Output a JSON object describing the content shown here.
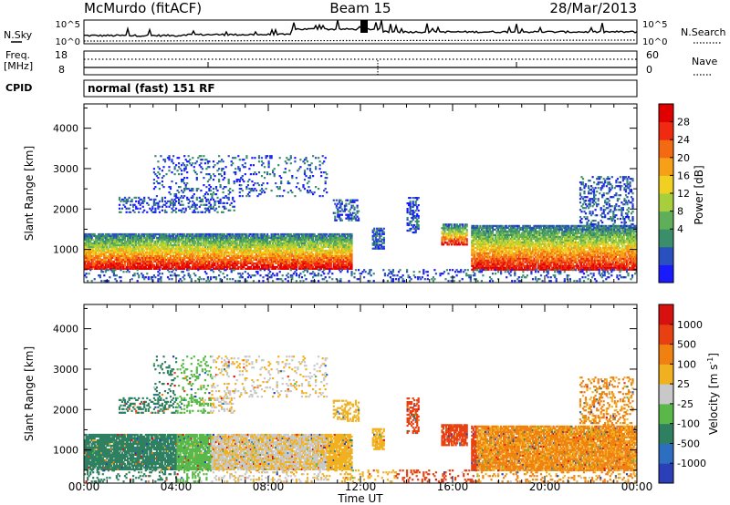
{
  "header": {
    "station": "McMurdo (fitACF)",
    "beam": "Beam 15",
    "date": "28/Mar/2013"
  },
  "summary_panels": {
    "nsky_label": "N.Sky",
    "nsearch_label": "N.Search",
    "nsky_ticks": [
      "10^5",
      "10^0"
    ],
    "nsearch_ticks": [
      "10^5",
      "10^0"
    ],
    "freq_label": "Freq.",
    "freq_unit": "[MHz]",
    "freq_ticks": [
      "18",
      "8"
    ],
    "nave_label": "Nave",
    "nave_ticks": [
      "60",
      "0"
    ],
    "cpid_label": "CPID",
    "cpid_text": "normal (fast) 151 RF"
  },
  "chart_data": [
    {
      "type": "heatmap",
      "name": "power",
      "xlabel": "",
      "ylabel": "Slant Range [km]",
      "xlim": [
        0,
        24
      ],
      "ylim": [
        180,
        4600
      ],
      "y_ticks": [
        "1000",
        "2000",
        "3000",
        "4000"
      ],
      "colorbar_label": "Power [dB]",
      "colorbar_ticks": [
        "28",
        "24",
        "20",
        "16",
        "12",
        "8",
        "4"
      ],
      "colors": [
        "#1a1aff",
        "#2a4fbf",
        "#3a8f6a",
        "#5fae5a",
        "#a6cf3b",
        "#f0d020",
        "#f5a016",
        "#f36a12",
        "#ef2a10",
        "#e10000"
      ]
    },
    {
      "type": "heatmap",
      "name": "velocity",
      "xlabel": "Time UT",
      "ylabel": "Slant Range [km]",
      "xlim": [
        0,
        24
      ],
      "ylim": [
        180,
        4600
      ],
      "x_ticks": [
        "00:00",
        "04:00",
        "08:00",
        "12:00",
        "16:00",
        "20:00",
        "00:00"
      ],
      "y_ticks": [
        "1000",
        "2000",
        "3000",
        "4000"
      ],
      "colorbar_label": "Velocity [m s",
      "colorbar_label_exp": "-1",
      "colorbar_label_end": "]",
      "colorbar_ticks": [
        "1000",
        "500",
        "100",
        "25",
        "-25",
        "-100",
        "-500",
        "-1000"
      ],
      "colors": [
        "#2b3fb8",
        "#2e6ec0",
        "#2f8060",
        "#5ab84a",
        "#c8c8c8",
        "#f0b020",
        "#f08010",
        "#e84010",
        "#d81010"
      ]
    }
  ]
}
